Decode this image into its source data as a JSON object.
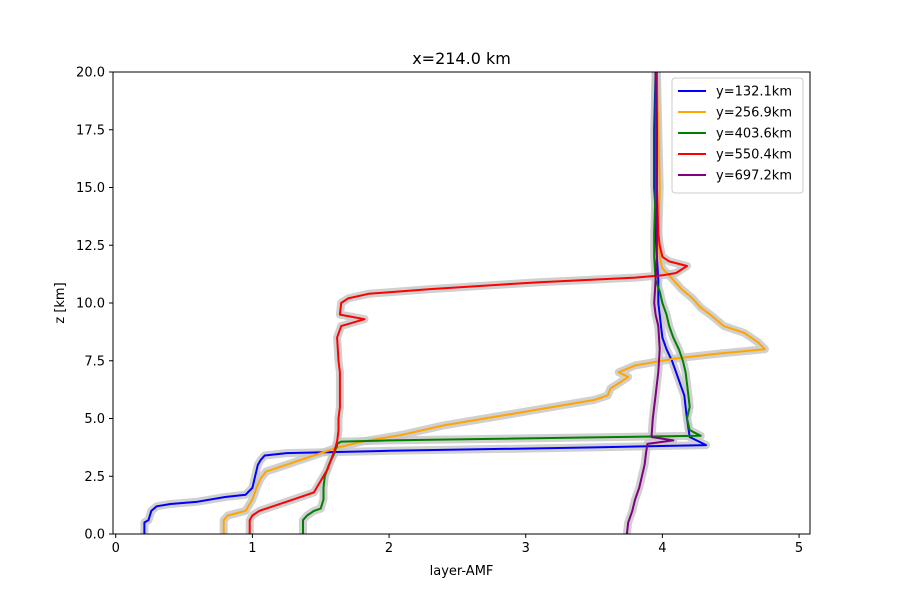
{
  "chart_data": {
    "type": "line",
    "title": "x=214.0 km",
    "xlabel": "layer-AMF",
    "ylabel": "z [km]",
    "xlim": [
      -0.02,
      5.08
    ],
    "ylim": [
      0,
      20
    ],
    "xticks": [
      0,
      1,
      2,
      3,
      4,
      5
    ],
    "xtick_labels": [
      "0",
      "1",
      "2",
      "3",
      "4",
      "5"
    ],
    "yticks": [
      0,
      2.5,
      5,
      7.5,
      10,
      12.5,
      15,
      17.5,
      20
    ],
    "ytick_labels": [
      "0.0",
      "2.5",
      "5.0",
      "7.5",
      "10.0",
      "12.5",
      "15.0",
      "17.5",
      "20.0"
    ],
    "grid": false,
    "legend_position": "upper right",
    "band_color": "#c8c8c8",
    "series": [
      {
        "name": "y=132.1km",
        "color": "#0000ff",
        "x": [
          0.21,
          0.21,
          0.24,
          0.26,
          0.3,
          0.4,
          0.6,
          0.8,
          0.95,
          1.0,
          1.02,
          1.04,
          1.06,
          1.09,
          1.25,
          2.0,
          3.5,
          4.32,
          4.2,
          4.18,
          4.17,
          4.16,
          4.13,
          4.1,
          4.07,
          4.03,
          4.0,
          3.99,
          3.98,
          3.97,
          3.97,
          3.96,
          3.95,
          3.95,
          3.94,
          3.94,
          3.95
        ],
        "y": [
          0.0,
          0.5,
          0.6,
          1.0,
          1.2,
          1.3,
          1.4,
          1.6,
          1.7,
          2.0,
          2.5,
          3.0,
          3.2,
          3.4,
          3.5,
          3.6,
          3.75,
          3.85,
          4.2,
          5.0,
          5.5,
          6.0,
          6.5,
          7.0,
          7.5,
          8.0,
          8.5,
          9.0,
          9.5,
          10.0,
          11.0,
          12.0,
          13.0,
          14.0,
          15.0,
          17.5,
          20.0
        ]
      },
      {
        "name": "y=256.9km",
        "color": "#ffa500",
        "x": [
          0.79,
          0.79,
          0.82,
          0.95,
          1.0,
          1.03,
          1.06,
          1.1,
          1.25,
          1.45,
          1.6,
          1.8,
          2.1,
          2.4,
          2.7,
          3.0,
          3.3,
          3.5,
          3.6,
          3.62,
          3.7,
          3.75,
          3.68,
          3.8,
          4.1,
          4.4,
          4.75,
          4.7,
          4.6,
          4.45,
          4.35,
          4.28,
          4.22,
          4.14,
          4.08,
          4.0,
          3.98,
          3.97,
          3.98,
          3.97,
          3.96
        ],
        "y": [
          0.0,
          0.6,
          0.8,
          1.0,
          1.5,
          2.0,
          2.4,
          2.7,
          3.0,
          3.4,
          3.7,
          4.0,
          4.3,
          4.7,
          5.0,
          5.3,
          5.6,
          5.8,
          6.0,
          6.3,
          6.6,
          6.8,
          7.0,
          7.3,
          7.6,
          7.8,
          8.0,
          8.3,
          8.7,
          9.0,
          9.5,
          9.8,
          10.2,
          10.6,
          11.0,
          11.5,
          12.0,
          13.0,
          15.0,
          17.5,
          20.0
        ]
      },
      {
        "name": "y=403.6km",
        "color": "#008000",
        "x": [
          1.37,
          1.37,
          1.4,
          1.45,
          1.5,
          1.52,
          1.52,
          1.53,
          1.56,
          1.6,
          1.61,
          1.62,
          1.62,
          1.65,
          2.0,
          4.28,
          4.2,
          4.18,
          4.2,
          4.19,
          4.18,
          4.17,
          4.15,
          4.12,
          4.08,
          4.05,
          4.03,
          4.0,
          3.98,
          3.95,
          3.94,
          3.94,
          3.95,
          3.95
        ],
        "y": [
          0.0,
          0.6,
          0.8,
          1.0,
          1.1,
          1.5,
          2.0,
          2.5,
          3.0,
          3.5,
          3.7,
          3.8,
          3.9,
          4.0,
          4.05,
          4.25,
          4.5,
          5.0,
          5.5,
          6.0,
          6.5,
          7.0,
          7.5,
          8.0,
          8.5,
          9.0,
          9.5,
          10.0,
          10.5,
          11.0,
          12.0,
          13.0,
          15.0,
          20.0
        ]
      },
      {
        "name": "y=550.4km",
        "color": "#ff0000",
        "x": [
          0.98,
          0.98,
          1.0,
          1.05,
          1.15,
          1.3,
          1.45,
          1.5,
          1.55,
          1.58,
          1.6,
          1.62,
          1.63,
          1.63,
          1.64,
          1.64,
          1.64,
          1.64,
          1.63,
          1.62,
          1.65,
          1.82,
          1.64,
          1.65,
          1.7,
          1.85,
          2.3,
          3.1,
          3.8,
          4.0,
          4.1,
          4.18,
          4.05,
          4.0,
          3.98,
          3.97,
          3.96,
          3.96,
          3.96,
          3.96
        ],
        "y": [
          0.0,
          0.6,
          0.8,
          1.0,
          1.2,
          1.5,
          1.8,
          2.3,
          2.8,
          3.3,
          3.6,
          4.0,
          4.5,
          5.0,
          5.5,
          6.0,
          6.5,
          7.0,
          7.5,
          8.5,
          9.0,
          9.3,
          9.5,
          10.0,
          10.2,
          10.4,
          10.6,
          10.9,
          11.1,
          11.2,
          11.3,
          11.6,
          11.8,
          12.0,
          12.5,
          13.0,
          15.0,
          16.0,
          17.5,
          20.0
        ]
      },
      {
        "name": "y=697.2km",
        "color": "#800080",
        "x": [
          3.74,
          3.75,
          3.78,
          3.8,
          3.83,
          3.85,
          3.87,
          3.88,
          3.89,
          4.08,
          3.92,
          3.93,
          3.94,
          3.95,
          3.96,
          3.97,
          3.98,
          3.97,
          3.95,
          3.94,
          3.95,
          3.96,
          3.96,
          3.96,
          3.95
        ],
        "y": [
          0.0,
          0.5,
          1.0,
          1.5,
          2.0,
          2.5,
          3.0,
          3.5,
          3.9,
          4.05,
          4.2,
          5.0,
          5.5,
          6.0,
          6.5,
          7.0,
          8.0,
          9.0,
          9.5,
          10.0,
          11.0,
          12.0,
          15.0,
          17.5,
          20.0
        ]
      }
    ]
  }
}
